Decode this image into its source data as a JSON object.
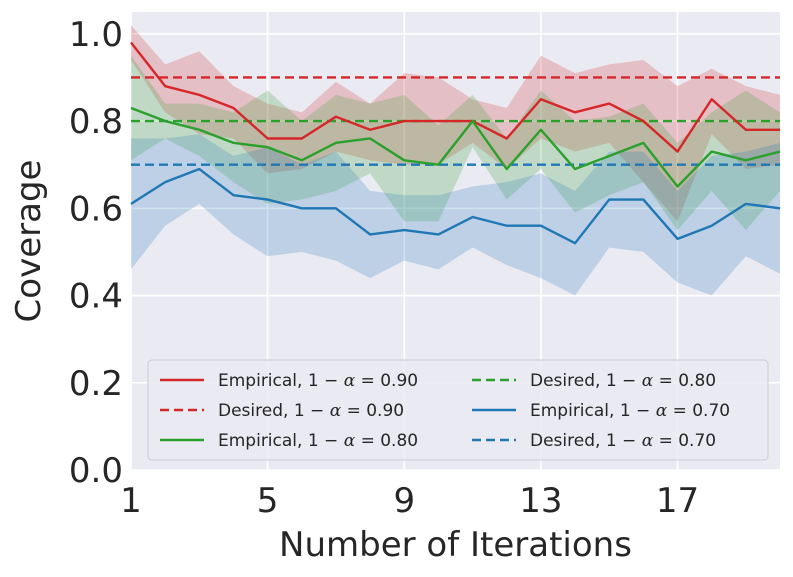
{
  "chart_data": {
    "type": "line",
    "xlabel": "Number of Iterations",
    "ylabel": "Coverage",
    "xlim": [
      1,
      20
    ],
    "ylim": [
      0.0,
      1.05
    ],
    "xticks": [
      1,
      5,
      9,
      13,
      17
    ],
    "xtick_labels": [
      "1",
      "5",
      "9",
      "13",
      "17"
    ],
    "yticks": [
      0.0,
      0.2,
      0.4,
      0.6,
      0.8,
      1.0
    ],
    "ytick_labels": [
      "0.0",
      "0.2",
      "0.4",
      "0.6",
      "0.8",
      "1.0"
    ],
    "grid": true,
    "legend_position": "bottom",
    "x": [
      1,
      2,
      3,
      4,
      5,
      6,
      7,
      8,
      9,
      10,
      11,
      12,
      13,
      14,
      15,
      16,
      17,
      18,
      19,
      20
    ],
    "series": [
      {
        "name": "Empirical, 1 − α = 0.90",
        "legend_prefix": "Empirical, ",
        "alpha_value": "0.90",
        "kind": "empirical",
        "color": "#d62728",
        "values": [
          0.98,
          0.88,
          0.86,
          0.83,
          0.76,
          0.76,
          0.81,
          0.78,
          0.8,
          0.8,
          0.8,
          0.76,
          0.85,
          0.82,
          0.84,
          0.8,
          0.73,
          0.85,
          0.78,
          0.78
        ],
        "upper": [
          1.02,
          0.93,
          0.96,
          0.88,
          0.84,
          0.82,
          0.89,
          0.84,
          0.91,
          0.9,
          0.85,
          0.83,
          0.95,
          0.91,
          0.93,
          0.94,
          0.88,
          0.92,
          0.88,
          0.86
        ],
        "lower": [
          0.94,
          0.82,
          0.77,
          0.76,
          0.68,
          0.69,
          0.73,
          0.71,
          0.7,
          0.7,
          0.75,
          0.69,
          0.76,
          0.73,
          0.75,
          0.66,
          0.57,
          0.77,
          0.69,
          0.7
        ]
      },
      {
        "name": "Desired, 1 − α = 0.90",
        "legend_prefix": "Desired, ",
        "alpha_value": "0.90",
        "kind": "desired",
        "color": "#d62728",
        "value": 0.9
      },
      {
        "name": "Empirical, 1 − α = 0.80",
        "legend_prefix": "Empirical, ",
        "alpha_value": "0.80",
        "kind": "empirical",
        "color": "#2ca02c",
        "values": [
          0.83,
          0.8,
          0.78,
          0.75,
          0.74,
          0.71,
          0.75,
          0.76,
          0.71,
          0.7,
          0.8,
          0.69,
          0.78,
          0.69,
          0.72,
          0.75,
          0.65,
          0.73,
          0.71,
          0.73
        ],
        "upper": [
          0.95,
          0.84,
          0.84,
          0.82,
          0.87,
          0.8,
          0.86,
          0.84,
          0.86,
          0.79,
          0.86,
          0.76,
          0.87,
          0.8,
          0.81,
          0.84,
          0.75,
          0.82,
          0.87,
          0.82
        ],
        "lower": [
          0.71,
          0.76,
          0.72,
          0.66,
          0.61,
          0.62,
          0.64,
          0.68,
          0.57,
          0.57,
          0.74,
          0.62,
          0.69,
          0.59,
          0.63,
          0.66,
          0.55,
          0.64,
          0.55,
          0.64
        ]
      },
      {
        "name": "Desired, 1 − α = 0.80",
        "legend_prefix": "Desired, ",
        "alpha_value": "0.80",
        "kind": "desired",
        "color": "#2ca02c",
        "value": 0.8
      },
      {
        "name": "Empirical, 1 − α = 0.70",
        "legend_prefix": "Empirical, ",
        "alpha_value": "0.70",
        "kind": "empirical",
        "color": "#1f77b4",
        "values": [
          0.61,
          0.66,
          0.69,
          0.63,
          0.62,
          0.6,
          0.6,
          0.54,
          0.55,
          0.54,
          0.58,
          0.56,
          0.56,
          0.52,
          0.62,
          0.62,
          0.53,
          0.56,
          0.61,
          0.6
        ],
        "upper": [
          0.76,
          0.76,
          0.77,
          0.72,
          0.74,
          0.7,
          0.73,
          0.64,
          0.63,
          0.63,
          0.65,
          0.66,
          0.68,
          0.64,
          0.73,
          0.73,
          0.64,
          0.72,
          0.73,
          0.75
        ],
        "lower": [
          0.46,
          0.56,
          0.61,
          0.54,
          0.49,
          0.5,
          0.48,
          0.44,
          0.48,
          0.46,
          0.51,
          0.47,
          0.44,
          0.4,
          0.51,
          0.5,
          0.43,
          0.4,
          0.49,
          0.45
        ]
      },
      {
        "name": "Desired, 1 − α = 0.70",
        "legend_prefix": "Desired, ",
        "alpha_value": "0.70",
        "kind": "desired",
        "color": "#1f77b4",
        "value": 0.7
      }
    ],
    "legend_order": [
      0,
      3,
      1,
      4,
      2,
      5
    ],
    "colors": {
      "plot_background": "#eaeaf2",
      "grid": "#ffffff",
      "text": "#262626",
      "legend_background": "#eaeaf2",
      "legend_border": "#cccccc"
    }
  }
}
